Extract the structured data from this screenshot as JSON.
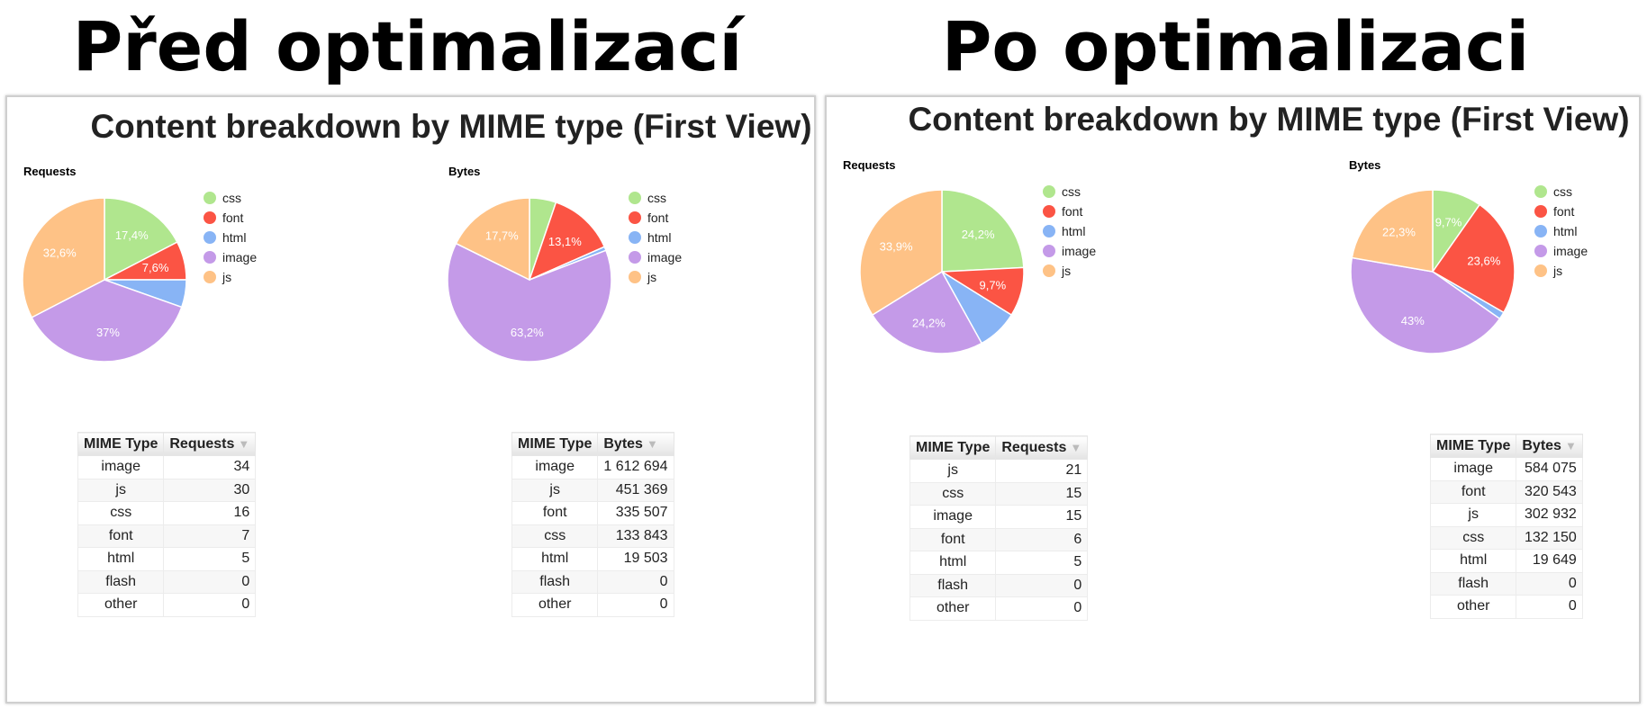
{
  "headings": {
    "before": "Před optimalizací",
    "after": "Po optimalizaci"
  },
  "colors": {
    "css": "#b0e68e",
    "font": "#fb5444",
    "html": "#88b4f5",
    "image": "#c49ae8",
    "js": "#fec286"
  },
  "panels": [
    {
      "title": "Content breakdown by MIME type (First View)",
      "requests_label": "Requests",
      "bytes_label": "Bytes",
      "legend": [
        "css",
        "font",
        "html",
        "image",
        "js"
      ],
      "requests_table": {
        "headers": [
          "MIME Type",
          "Requests"
        ],
        "rows": [
          [
            "image",
            "34"
          ],
          [
            "js",
            "30"
          ],
          [
            "css",
            "16"
          ],
          [
            "font",
            "7"
          ],
          [
            "html",
            "5"
          ],
          [
            "flash",
            "0"
          ],
          [
            "other",
            "0"
          ]
        ]
      },
      "bytes_table": {
        "headers": [
          "MIME Type",
          "Bytes"
        ],
        "rows": [
          [
            "image",
            "1 612 694"
          ],
          [
            "js",
            "451 369"
          ],
          [
            "font",
            "335 507"
          ],
          [
            "css",
            "133 843"
          ],
          [
            "html",
            "19 503"
          ],
          [
            "flash",
            "0"
          ],
          [
            "other",
            "0"
          ]
        ]
      }
    },
    {
      "title": "Content breakdown by MIME type (First View)",
      "requests_label": "Requests",
      "bytes_label": "Bytes",
      "legend": [
        "css",
        "font",
        "html",
        "image",
        "js"
      ],
      "requests_table": {
        "headers": [
          "MIME Type",
          "Requests"
        ],
        "rows": [
          [
            "js",
            "21"
          ],
          [
            "css",
            "15"
          ],
          [
            "image",
            "15"
          ],
          [
            "font",
            "6"
          ],
          [
            "html",
            "5"
          ],
          [
            "flash",
            "0"
          ],
          [
            "other",
            "0"
          ]
        ]
      },
      "bytes_table": {
        "headers": [
          "MIME Type",
          "Bytes"
        ],
        "rows": [
          [
            "image",
            "584 075"
          ],
          [
            "font",
            "320 543"
          ],
          [
            "js",
            "302 932"
          ],
          [
            "css",
            "132 150"
          ],
          [
            "html",
            "19 649"
          ],
          [
            "flash",
            "0"
          ],
          [
            "other",
            "0"
          ]
        ]
      }
    }
  ],
  "chart_data": [
    {
      "type": "pie",
      "title": "Requests",
      "categories": [
        "css",
        "font",
        "html",
        "image",
        "js"
      ],
      "values": [
        16,
        7,
        5,
        34,
        30
      ],
      "labels": [
        "17,4%",
        "7,6%",
        "",
        "37%",
        "32,6%"
      ]
    },
    {
      "type": "pie",
      "title": "Bytes",
      "categories": [
        "css",
        "font",
        "html",
        "image",
        "js"
      ],
      "values": [
        133843,
        335507,
        19503,
        1612694,
        451369
      ],
      "labels": [
        "",
        "13,1%",
        "",
        "63,2%",
        "17,7%"
      ]
    },
    {
      "type": "pie",
      "title": "Requests",
      "categories": [
        "css",
        "font",
        "html",
        "image",
        "js"
      ],
      "values": [
        15,
        6,
        5,
        15,
        21
      ],
      "labels": [
        "24,2%",
        "9,7%",
        "",
        "24,2%",
        "33,9%"
      ]
    },
    {
      "type": "pie",
      "title": "Bytes",
      "categories": [
        "css",
        "font",
        "html",
        "image",
        "js"
      ],
      "values": [
        132150,
        320543,
        19649,
        584075,
        302932
      ],
      "labels": [
        "9,7%",
        "23,6%",
        "",
        "43%",
        "22,3%"
      ]
    }
  ]
}
